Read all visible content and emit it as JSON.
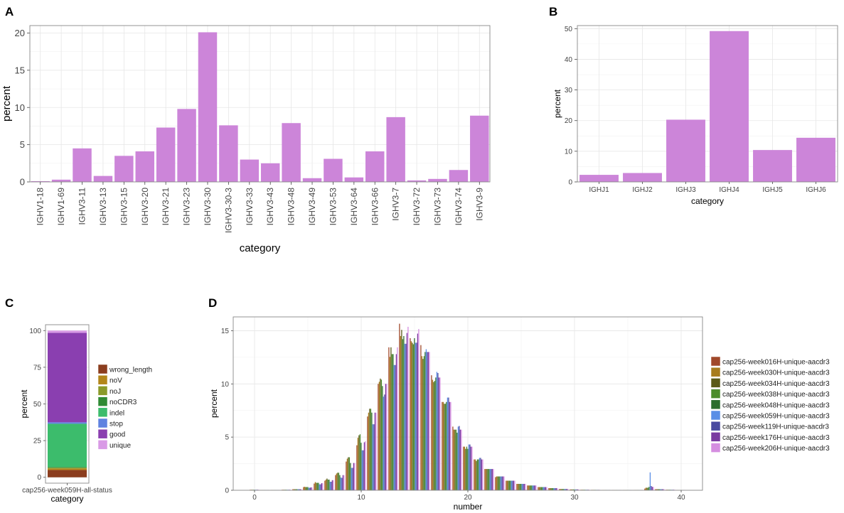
{
  "chart_data": [
    {
      "panel": "A",
      "type": "bar",
      "title": "",
      "xlabel": "category",
      "ylabel": "percent",
      "ylim": [
        0,
        21
      ],
      "yticks": [
        0,
        5,
        10,
        15,
        20
      ],
      "bar_color": "#cc85d9",
      "categories": [
        "IGHV1-18",
        "IGHV1-69",
        "IGHV3-11",
        "IGHV3-13",
        "IGHV3-15",
        "IGHV3-20",
        "IGHV3-21",
        "IGHV3-23",
        "IGHV3-30",
        "IGHV3-30-3",
        "IGHV3-33",
        "IGHV3-43",
        "IGHV3-48",
        "IGHV3-49",
        "IGHV3-53",
        "IGHV3-64",
        "IGHV3-66",
        "IGHV3-7",
        "IGHV3-72",
        "IGHV3-73",
        "IGHV3-74",
        "IGHV3-9"
      ],
      "values": [
        0.1,
        0.3,
        4.5,
        0.8,
        3.5,
        4.1,
        7.3,
        9.8,
        20.1,
        7.6,
        3.0,
        2.5,
        7.9,
        0.5,
        3.1,
        0.6,
        4.1,
        8.7,
        0.2,
        0.4,
        1.6,
        8.9
      ],
      "grid": true
    },
    {
      "panel": "B",
      "type": "bar",
      "title": "",
      "xlabel": "category",
      "ylabel": "percent",
      "ylim": [
        0,
        51
      ],
      "yticks": [
        0,
        10,
        20,
        30,
        40,
        50
      ],
      "bar_color": "#cc85d9",
      "categories": [
        "IGHJ1",
        "IGHJ2",
        "IGHJ3",
        "IGHJ4",
        "IGHJ5",
        "IGHJ6"
      ],
      "values": [
        2.3,
        2.9,
        20.3,
        49.2,
        10.4,
        14.4
      ],
      "grid": true
    },
    {
      "panel": "C",
      "type": "bar",
      "subtype": "stacked",
      "title": "",
      "xlabel": "category",
      "ylabel": "percent",
      "ylim": [
        0,
        100
      ],
      "yticks": [
        0,
        25,
        50,
        75,
        100
      ],
      "categories": [
        "cap256-week059H-all-status"
      ],
      "series": [
        {
          "name": "wrong_length",
          "values": [
            5.0
          ],
          "color": "#8b3d1e"
        },
        {
          "name": "noV",
          "values": [
            1.0
          ],
          "color": "#b3861a"
        },
        {
          "name": "noJ",
          "values": [
            0.5
          ],
          "color": "#8a9a2a"
        },
        {
          "name": "noCDR3",
          "values": [
            0.5
          ],
          "color": "#2f8a34"
        },
        {
          "name": "indel",
          "values": [
            29.5
          ],
          "color": "#3cbc6c"
        },
        {
          "name": "stop",
          "values": [
            1.0
          ],
          "color": "#5f82e0"
        },
        {
          "name": "good",
          "values": [
            61.0
          ],
          "color": "#8a3fb0"
        },
        {
          "name": "unique",
          "values": [
            1.5
          ],
          "color": "#d99ae6"
        }
      ],
      "legend": "right",
      "grid": true
    },
    {
      "panel": "D",
      "type": "bar",
      "subtype": "grouped",
      "title": "",
      "xlabel": "number",
      "ylabel": "percent",
      "xlim": [
        -2,
        42
      ],
      "ylim": [
        0,
        16.3
      ],
      "xticks": [
        0,
        10,
        20,
        30,
        40
      ],
      "yticks": [
        0,
        5,
        10,
        15
      ],
      "x": [
        0,
        1,
        2,
        3,
        4,
        5,
        6,
        7,
        8,
        9,
        10,
        11,
        12,
        13,
        14,
        15,
        16,
        17,
        18,
        19,
        20,
        21,
        22,
        23,
        24,
        25,
        26,
        27,
        28,
        29,
        30,
        31,
        32,
        33,
        34,
        35,
        36,
        37,
        38,
        39,
        40
      ],
      "base_profile": [
        0.05,
        0.03,
        0.03,
        0.05,
        0.1,
        0.3,
        0.7,
        1.0,
        1.5,
        2.7,
        4.7,
        7.3,
        10.0,
        12.8,
        14.5,
        14.3,
        13.0,
        10.6,
        8.3,
        5.7,
        4.1,
        2.9,
        2.0,
        1.3,
        0.9,
        0.6,
        0.45,
        0.3,
        0.2,
        0.12,
        0.08,
        0.05,
        0.04,
        0.03,
        0.02,
        0.02,
        0.03,
        0.8,
        0.1,
        0.05,
        0.02
      ],
      "series": [
        {
          "name": "cap256-week016H-unique-aacdr3",
          "color": "#a0482a",
          "scale": [
            1.0,
            1.0,
            1.0,
            1.0,
            1.0,
            1.0,
            0.9,
            0.9,
            0.95,
            1.0,
            0.9,
            0.95,
            1.0,
            1.05,
            1.08,
            1.0,
            1.05,
            1.02,
            1.0,
            1.05,
            1.0,
            1.0,
            1.0,
            0.95,
            1.0,
            1.0,
            1.0,
            1.0,
            1.0,
            1.0,
            1.0,
            1.0,
            1.0,
            1.0,
            1.0,
            1.0,
            1.0,
            0.2,
            1.0,
            1.0,
            1.0
          ]
        },
        {
          "name": "cap256-week030H-unique-aacdr3",
          "color": "#a77c1e",
          "scale": [
            1.0,
            1.0,
            1.0,
            1.0,
            1.0,
            1.1,
            1.1,
            1.0,
            1.05,
            1.1,
            1.05,
            1.0,
            1.02,
            0.98,
            1.0,
            0.98,
            0.97,
            0.98,
            1.0,
            1.0,
            1.0,
            1.0,
            1.0,
            1.0,
            1.0,
            1.0,
            1.0,
            1.0,
            1.0,
            1.0,
            1.0,
            1.0,
            1.0,
            1.0,
            1.0,
            1.0,
            1.0,
            0.3,
            1.0,
            1.0,
            1.0
          ]
        },
        {
          "name": "cap256-week034H-unique-aacdr3",
          "color": "#5b5a18",
          "scale": [
            1.0,
            1.0,
            1.0,
            1.0,
            1.0,
            1.0,
            1.0,
            1.1,
            1.1,
            1.15,
            1.1,
            1.05,
            1.05,
            1.05,
            1.04,
            0.97,
            0.95,
            0.96,
            0.98,
            1.0,
            0.95,
            0.95,
            1.0,
            1.0,
            1.0,
            1.0,
            1.0,
            1.0,
            1.0,
            1.0,
            1.0,
            1.0,
            1.0,
            1.0,
            1.0,
            1.0,
            1.0,
            0.3,
            1.0,
            1.0,
            1.0
          ]
        },
        {
          "name": "cap256-week038H-unique-aacdr3",
          "color": "#4c8c2c",
          "scale": [
            1.0,
            1.0,
            1.0,
            1.0,
            1.0,
            1.0,
            1.0,
            1.0,
            1.1,
            1.15,
            1.12,
            1.05,
            1.04,
            1.0,
            0.98,
            0.96,
            0.97,
            0.97,
            0.98,
            1.0,
            1.0,
            1.0,
            1.0,
            1.0,
            1.0,
            1.0,
            1.0,
            1.0,
            1.0,
            1.0,
            1.0,
            1.0,
            1.0,
            1.0,
            1.0,
            1.0,
            1.0,
            0.3,
            1.0,
            1.0,
            1.0
          ]
        },
        {
          "name": "cap256-week048H-unique-aacdr3",
          "color": "#2d6e2d",
          "scale": [
            1.0,
            1.0,
            1.0,
            1.0,
            1.0,
            1.0,
            1.0,
            1.0,
            0.95,
            0.95,
            0.95,
            1.0,
            0.98,
            1.0,
            1.0,
            1.0,
            1.0,
            1.0,
            1.0,
            0.95,
            0.95,
            1.0,
            1.0,
            1.0,
            1.0,
            1.0,
            1.0,
            1.0,
            1.0,
            1.0,
            1.0,
            1.0,
            1.0,
            1.0,
            1.0,
            1.0,
            1.0,
            0.4,
            1.0,
            1.0,
            1.0
          ]
        },
        {
          "name": "cap256-week059H-unique-aacdr3",
          "color": "#5a8ee6",
          "scale": [
            1.0,
            1.0,
            1.0,
            1.0,
            1.0,
            0.8,
            0.8,
            0.8,
            0.8,
            0.78,
            0.8,
            0.85,
            0.88,
            0.92,
            0.95,
            0.97,
            1.02,
            1.05,
            1.05,
            1.05,
            1.05,
            1.05,
            1.0,
            1.0,
            1.0,
            1.0,
            1.0,
            1.0,
            1.0,
            1.0,
            1.0,
            1.0,
            1.0,
            1.0,
            1.0,
            1.0,
            1.0,
            2.1,
            1.0,
            1.0,
            1.0
          ]
        },
        {
          "name": "cap256-week119H-unique-aacdr3",
          "color": "#4a4aa0",
          "scale": [
            1.0,
            1.0,
            1.0,
            1.0,
            1.0,
            0.8,
            0.8,
            0.8,
            0.78,
            0.78,
            0.8,
            0.85,
            0.9,
            0.92,
            0.95,
            0.97,
            1.0,
            1.04,
            1.05,
            1.06,
            1.05,
            1.05,
            1.0,
            1.0,
            1.0,
            1.0,
            1.0,
            1.0,
            1.0,
            1.0,
            1.0,
            1.0,
            1.0,
            1.0,
            1.0,
            1.0,
            1.0,
            0.5,
            1.0,
            1.0,
            1.0
          ]
        },
        {
          "name": "cap256-week176H-unique-aacdr3",
          "color": "#7a3aa0",
          "scale": [
            1.0,
            1.0,
            1.0,
            1.0,
            1.0,
            0.9,
            0.95,
            0.95,
            0.95,
            0.95,
            0.96,
            1.0,
            1.0,
            1.0,
            1.02,
            1.03,
            1.0,
            1.0,
            1.0,
            1.0,
            1.0,
            1.0,
            1.0,
            1.0,
            1.0,
            1.0,
            1.0,
            1.0,
            1.0,
            1.0,
            1.0,
            1.0,
            1.0,
            1.0,
            1.0,
            1.0,
            1.0,
            0.4,
            1.0,
            1.0,
            1.0
          ]
        },
        {
          "name": "cap256-week206H-unique-aacdr3",
          "color": "#d58ee0",
          "scale": [
            1.0,
            1.0,
            1.0,
            1.0,
            1.0,
            0.9,
            0.95,
            0.95,
            0.95,
            0.95,
            0.98,
            1.0,
            1.0,
            1.05,
            1.06,
            1.06,
            1.0,
            1.0,
            1.0,
            1.0,
            1.0,
            1.0,
            1.0,
            1.0,
            1.0,
            1.0,
            1.0,
            1.0,
            1.0,
            1.0,
            1.0,
            1.0,
            1.0,
            1.0,
            1.0,
            1.0,
            1.0,
            0.4,
            1.0,
            1.0,
            1.0
          ]
        }
      ],
      "legend": "right",
      "grid": true
    }
  ]
}
